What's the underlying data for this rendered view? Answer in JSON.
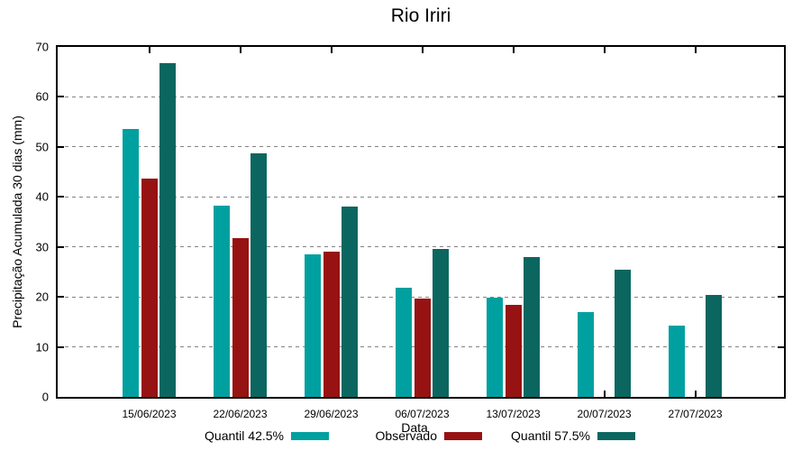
{
  "chart_data": {
    "type": "bar",
    "title": "Rio Iriri",
    "xlabel": "Data",
    "ylabel": "Precipitação Acumulada 30 dias (mm)",
    "categories": [
      "15/06/2023",
      "22/06/2023",
      "29/06/2023",
      "06/07/2023",
      "13/07/2023",
      "20/07/2023",
      "27/07/2023"
    ],
    "series": [
      {
        "name": "Quantil 42.5%",
        "color": "#00A0A0",
        "values": [
          53.5,
          38.2,
          28.5,
          21.8,
          19.9,
          17.0,
          14.2
        ]
      },
      {
        "name": "Observado",
        "color": "#971212",
        "values": [
          43.7,
          31.7,
          29.1,
          19.7,
          18.4,
          null,
          null
        ]
      },
      {
        "name": "Quantil 57.5%",
        "color": "#0B6660",
        "values": [
          66.8,
          48.8,
          38.0,
          29.6,
          27.9,
          25.4,
          20.4
        ]
      }
    ],
    "ylim": [
      0,
      70
    ],
    "yticks": [
      0,
      10,
      20,
      30,
      40,
      50,
      60,
      70
    ],
    "grid": "horizontal-dashed",
    "grid_color": "#848484",
    "axis_color": "#000000",
    "legend_position": "bottom-center"
  }
}
